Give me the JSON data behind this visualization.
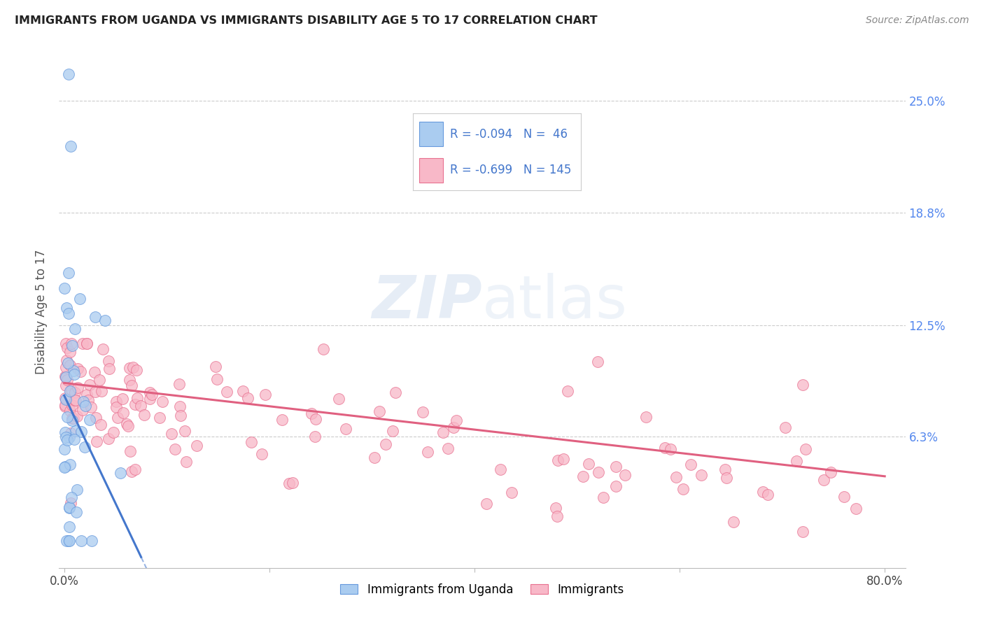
{
  "title": "IMMIGRANTS FROM UGANDA VS IMMIGRANTS DISABILITY AGE 5 TO 17 CORRELATION CHART",
  "source": "Source: ZipAtlas.com",
  "ylabel": "Disability Age 5 to 17",
  "yticks_right": [
    "25.0%",
    "18.8%",
    "12.5%",
    "6.3%"
  ],
  "yticks_right_vals": [
    0.25,
    0.188,
    0.125,
    0.063
  ],
  "xlim": [
    -0.005,
    0.82
  ],
  "ylim": [
    -0.01,
    0.275
  ],
  "legend_blue_r": "-0.094",
  "legend_blue_n": "46",
  "legend_pink_r": "-0.699",
  "legend_pink_n": "145",
  "blue_fill": "#aaccf0",
  "blue_edge": "#6699dd",
  "pink_fill": "#f8b8c8",
  "pink_edge": "#e87090",
  "blue_line_color": "#4477cc",
  "pink_line_color": "#e06080",
  "grid_color": "#cccccc",
  "background_color": "#ffffff",
  "watermark_zip": "ZIP",
  "watermark_atlas": "atlas",
  "legend_text_color": "#4477cc"
}
